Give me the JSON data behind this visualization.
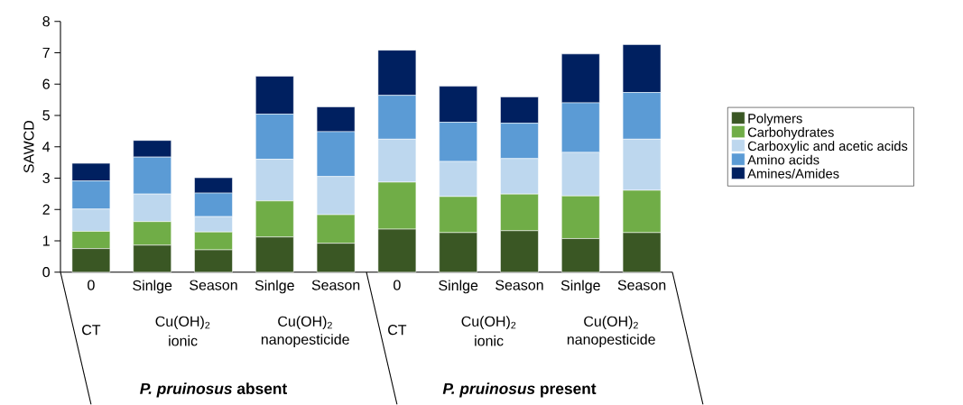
{
  "chart_data": {
    "type": "bar",
    "stacked": true,
    "ylabel": "SAWCD",
    "categories": [
      "0",
      "Sinlge",
      "Season",
      "Sinlge",
      "Season",
      "0",
      "Sinlge",
      "Season",
      "Sinlge",
      "Season"
    ],
    "series": [
      {
        "name": "Polymers",
        "color": "#3a5724",
        "values": [
          0.75,
          0.86,
          0.71,
          1.12,
          0.92,
          1.37,
          1.26,
          1.32,
          1.07,
          1.26
        ]
      },
      {
        "name": "Carbohydrates",
        "color": "#70ad47",
        "values": [
          0.55,
          0.75,
          0.57,
          1.15,
          0.91,
          1.5,
          1.15,
          1.17,
          1.36,
          1.35
        ]
      },
      {
        "name": "Carboxylic and acetic acids",
        "color": "#bdd7ee",
        "values": [
          0.71,
          0.88,
          0.49,
          1.33,
          1.22,
          1.37,
          1.12,
          1.13,
          1.39,
          1.63
        ]
      },
      {
        "name": "Amino acids",
        "color": "#5b9bd5",
        "values": [
          0.9,
          1.18,
          0.75,
          1.44,
          1.43,
          1.4,
          1.25,
          1.13,
          1.58,
          1.49
        ]
      },
      {
        "name": "Amines/Amides",
        "color": "#002060",
        "values": [
          0.56,
          0.53,
          0.49,
          1.21,
          0.79,
          1.44,
          1.15,
          0.84,
          1.56,
          1.53
        ]
      }
    ],
    "ylim": [
      0,
      8
    ],
    "yticks": [
      0,
      1,
      2,
      3,
      4,
      5,
      6,
      7,
      8
    ],
    "legend": "right",
    "annotations": [
      "CT",
      "Cu(OH)$_{2}$",
      "ionic",
      "Cu(OH)$_{2}$",
      "nanopesticide",
      "CT",
      "Cu(OH)$_{2}$",
      "ionic",
      "Cu(OH)$_{2}$",
      "nanopesticide",
      "*P. pruinosus* absent",
      "*P. pruinosus* present"
    ]
  }
}
